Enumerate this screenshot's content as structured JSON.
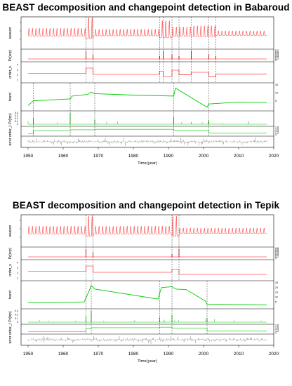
{
  "chart_data": [
    {
      "type": "line",
      "title": "BEAST decomposition and changepoint detection in Babaroud",
      "xlabel": "Time(year)",
      "x_ticks": [
        1950,
        1960,
        1970,
        1980,
        1990,
        2000,
        2010,
        2020
      ],
      "xlim": [
        1948,
        2020
      ],
      "data_range": [
        1950,
        2018
      ],
      "panel_labels": [
        "season",
        "Pr(scp)",
        "order_s",
        "trend",
        "Pr(tcp)",
        "order_t",
        "error"
      ],
      "season_changepoints": [
        1966.5,
        1968.5,
        1987.5,
        1988.5,
        1991.0,
        1993.0,
        1996.5,
        2001.5,
        2003.5
      ],
      "trend_changepoints": [
        1951.5,
        1962.0,
        1969.0,
        1991.5,
        2001.5
      ],
      "scp_right_ticks": [
        "0.7",
        "0.6",
        "0.5",
        "0.4",
        "0.3",
        "0.2",
        "0.1",
        "0"
      ],
      "tcp_left_ticks": [
        "0.4",
        "0.3",
        "0.2",
        "0.1",
        "0"
      ],
      "ordert_right_ticks": [
        "1.8",
        "1.6",
        "1.4",
        "1.2",
        "1"
      ],
      "orders_left_ticks": [
        "4",
        "3",
        "2",
        "1"
      ],
      "trend_right_ticks": [
        "15",
        "10",
        "5"
      ],
      "season_amplitude_segments": [
        {
          "from": 1950,
          "to": 1966.5,
          "amp": 1.0
        },
        {
          "from": 1966.5,
          "to": 1968.5,
          "amp": 2.8
        },
        {
          "from": 1968.5,
          "to": 1987.5,
          "amp": 0.85
        },
        {
          "from": 1987.5,
          "to": 1991.0,
          "amp": 2.2
        },
        {
          "from": 1991.0,
          "to": 1996.5,
          "amp": 1.2
        },
        {
          "from": 1996.5,
          "to": 2003.5,
          "amp": 1.4
        },
        {
          "from": 2003.5,
          "to": 2018,
          "amp": 0.6
        }
      ],
      "trend_values": [
        [
          1950,
          2.0
        ],
        [
          1951.5,
          5.0
        ],
        [
          1962,
          6.2
        ],
        [
          1962.5,
          8.0
        ],
        [
          1967,
          9.0
        ],
        [
          1968,
          10.5
        ],
        [
          1969,
          9.5
        ],
        [
          1980,
          8.6
        ],
        [
          1991.5,
          8.0
        ],
        [
          1992,
          13.0
        ],
        [
          2001,
          1.0
        ],
        [
          2001.5,
          3.0
        ],
        [
          2010,
          4.2
        ],
        [
          2018,
          4.0
        ]
      ]
    },
    {
      "type": "line",
      "title": "BEAST decomposition and changepoint detection in Tepik",
      "xlabel": "Time(year)",
      "x_ticks": [
        1950,
        1960,
        1970,
        1980,
        1990,
        2000,
        2010,
        2020
      ],
      "xlim": [
        1948,
        2020
      ],
      "data_range": [
        1950,
        2018
      ],
      "panel_labels": [
        "season",
        "Pr(scp)",
        "order_s",
        "trend",
        "Pr(tcp)",
        "order_t",
        "error"
      ],
      "season_changepoints": [
        1966.5,
        1968.5,
        1991.0,
        1993.0
      ],
      "trend_changepoints": [
        1966.5,
        1968.0,
        1987.5,
        1991.0,
        2001.0
      ],
      "scp_right_ticks": [
        "0.8",
        "0.6",
        "0.5",
        "0.4",
        "0.3",
        "0.2",
        "0.1",
        "0"
      ],
      "tcp_left_ticks": [
        "0.3",
        "0.2",
        "0.1",
        "0"
      ],
      "ordert_right_ticks": [
        "1.8",
        "1.6",
        "1.4",
        "1.2",
        "1"
      ],
      "orders_left_ticks": [
        "4",
        "3",
        "2",
        "1"
      ],
      "trend_right_ticks": [
        "25",
        "20",
        "15",
        "10",
        "5"
      ],
      "season_amplitude_segments": [
        {
          "from": 1950,
          "to": 1966.5,
          "amp": 1.0
        },
        {
          "from": 1966.5,
          "to": 1968.5,
          "amp": 2.6
        },
        {
          "from": 1968.5,
          "to": 1991.0,
          "amp": 1.0
        },
        {
          "from": 1991.0,
          "to": 1993.0,
          "amp": 2.6
        },
        {
          "from": 1993.0,
          "to": 2018,
          "amp": 0.7
        }
      ],
      "trend_values": [
        [
          1950,
          4.0
        ],
        [
          1966,
          5.0
        ],
        [
          1968,
          22.0
        ],
        [
          1969,
          18.5
        ],
        [
          1987,
          8.0
        ],
        [
          1988,
          20.0
        ],
        [
          1991,
          21.0
        ],
        [
          1992,
          18.5
        ],
        [
          1995,
          18.0
        ],
        [
          2000.5,
          6.0
        ],
        [
          2001,
          2.5
        ],
        [
          2018,
          2.0
        ]
      ]
    }
  ]
}
